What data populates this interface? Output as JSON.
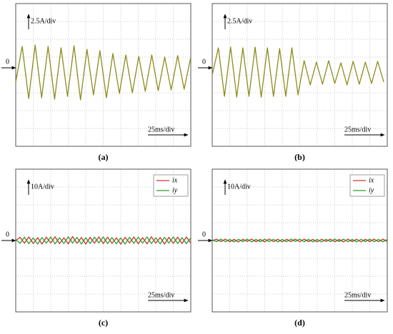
{
  "chart_data": [
    {
      "type": "line",
      "caption": "(a)",
      "y_scale_label": "2.5A/div",
      "x_scale_label": "25ms/div",
      "zero_marker": 0,
      "xlim": [
        0,
        250
      ],
      "ylim": [
        -11,
        9
      ],
      "xticks": [
        0,
        25,
        50,
        75,
        100,
        125,
        150,
        175,
        200,
        225,
        250
      ],
      "yticks": [
        -11,
        -8.5,
        -6,
        -3.5,
        -1,
        1.5,
        4,
        6.5,
        9
      ],
      "grid": true,
      "x": [
        0,
        9.25,
        18.5,
        27.75,
        37,
        46.25,
        55.5,
        64.75,
        74,
        83.25,
        92.5,
        101.75,
        111,
        120.25,
        129.5,
        138.75,
        148,
        157.25,
        166.5,
        175.75,
        185,
        194.25,
        203.5,
        212.75,
        222,
        231.25,
        240.5,
        249.75
      ],
      "series": [
        {
          "color": "#8c8c1c",
          "values": [
            -2,
            3,
            -4.3,
            3.2,
            -4.2,
            3,
            -4.4,
            2.8,
            -4,
            3.1,
            -4.5,
            2.6,
            -3.8,
            2.4,
            -4.2,
            2,
            -3.6,
            1.8,
            -3.5,
            1.6,
            -3.3,
            1.8,
            -3.2,
            1.5,
            -3.1,
            1.7,
            -3,
            1.4
          ]
        }
      ]
    },
    {
      "type": "line",
      "caption": "(b)",
      "y_scale_label": "2.5A/div",
      "x_scale_label": "25ms/div",
      "zero_marker": 0,
      "xlim": [
        0,
        250
      ],
      "ylim": [
        -11,
        9
      ],
      "xticks": [
        0,
        25,
        50,
        75,
        100,
        125,
        150,
        175,
        200,
        225,
        250
      ],
      "yticks": [
        -11,
        -8.5,
        -6,
        -3.5,
        -1,
        1.5,
        4,
        6.5,
        9
      ],
      "grid": true,
      "x": [
        0,
        8.75,
        17.5,
        26.25,
        35,
        43.75,
        52.5,
        61.25,
        70,
        78.75,
        87.5,
        96.25,
        105,
        113.75,
        122.5,
        131.25,
        140,
        148.75,
        157.5,
        166.25,
        175,
        183.75,
        192.5,
        201.25,
        210,
        218.75,
        227.5,
        236.25,
        245
      ],
      "series": [
        {
          "color": "#8c8c1c",
          "values": [
            -1,
            2.8,
            -4,
            2.9,
            -4.1,
            2.8,
            -4,
            2.9,
            -4.1,
            2.8,
            -4,
            2.7,
            -4,
            2.8,
            -3.8,
            1,
            -2.4,
            0.8,
            -2.3,
            1,
            -2.2,
            0.7,
            -2.4,
            0.9,
            -2.3,
            0.8,
            -2.2,
            0.9,
            -2
          ]
        }
      ]
    },
    {
      "type": "line",
      "caption": "(c)",
      "y_scale_label": "10A/div",
      "x_scale_label": "25ms/div",
      "zero_marker": 0,
      "legend": "top right",
      "xlim": [
        0,
        250
      ],
      "ylim": [
        -40,
        40
      ],
      "xticks": [
        0,
        25,
        50,
        75,
        100,
        125,
        150,
        175,
        200,
        225,
        250
      ],
      "yticks": [
        -40,
        -30,
        -20,
        -10,
        0,
        10,
        20,
        30,
        40
      ],
      "grid": true,
      "x": [
        0,
        6.25,
        12.5,
        18.75,
        25,
        31.25,
        37.5,
        43.75,
        50,
        56.25,
        62.5,
        68.75,
        75,
        81.25,
        87.5,
        93.75,
        100,
        106.25,
        112.5,
        118.75,
        125,
        131.25,
        137.5,
        143.75,
        150,
        156.25,
        162.5,
        168.75,
        175,
        181.25,
        187.5,
        193.75,
        200,
        206.25,
        212.5,
        218.75,
        225,
        231.25,
        237.5,
        243.75,
        250
      ],
      "series": [
        {
          "name": "ix",
          "color": "#d03030",
          "values": [
            0,
            1.8,
            -1.5,
            2,
            -1.7,
            1.6,
            -2,
            1.9,
            -1.4,
            2.1,
            -1.8,
            1.5,
            -1.9,
            2.2,
            -1.6,
            1.7,
            -2,
            1.8,
            -1.5,
            2,
            -1.7,
            1.9,
            -1.6,
            1.5,
            -2.1,
            1.8,
            -1.4,
            2,
            -1.8,
            1.6,
            -1.9,
            2.1,
            -1.5,
            1.7,
            -2,
            1.8,
            -1.6,
            1.9,
            -1.7,
            2,
            -1.5
          ]
        },
        {
          "name": "iy",
          "color": "#2e9e2e",
          "values": [
            0.5,
            -1.6,
            1.9,
            -1.8,
            1.5,
            -2,
            1.7,
            -1.5,
            2,
            -1.9,
            1.6,
            -1.7,
            2.1,
            -1.5,
            1.8,
            -2,
            1.6,
            -1.7,
            1.9,
            -1.4,
            2,
            -1.8,
            1.7,
            -1.9,
            1.5,
            -2,
            1.8,
            -1.6,
            1.9,
            -1.5,
            2,
            -1.7,
            1.6,
            -1.9,
            1.8,
            -1.5,
            2,
            -1.7,
            1.6,
            -1.8,
            1.5
          ]
        }
      ]
    },
    {
      "type": "line",
      "caption": "(d)",
      "y_scale_label": "10A/div",
      "x_scale_label": "25ms/div",
      "zero_marker": 0,
      "legend": "top right",
      "xlim": [
        0,
        250
      ],
      "ylim": [
        -40,
        40
      ],
      "xticks": [
        0,
        25,
        50,
        75,
        100,
        125,
        150,
        175,
        200,
        225,
        250
      ],
      "yticks": [
        -40,
        -30,
        -20,
        -10,
        0,
        10,
        20,
        30,
        40
      ],
      "grid": true,
      "x": [
        0,
        6.25,
        12.5,
        18.75,
        25,
        31.25,
        37.5,
        43.75,
        50,
        56.25,
        62.5,
        68.75,
        75,
        81.25,
        87.5,
        93.75,
        100,
        106.25,
        112.5,
        118.75,
        125,
        131.25,
        137.5,
        143.75,
        150,
        156.25,
        162.5,
        168.75,
        175,
        181.25,
        187.5,
        193.75,
        200,
        206.25,
        212.5,
        218.75,
        225,
        231.25,
        237.5,
        243.75,
        250
      ],
      "series": [
        {
          "name": "ix",
          "color": "#d03030",
          "values": [
            0,
            0.7,
            -0.6,
            0.8,
            -0.7,
            0.6,
            -0.8,
            0.7,
            -0.5,
            0.8,
            -0.7,
            0.6,
            -0.8,
            0.9,
            -0.6,
            0.7,
            -0.8,
            0.7,
            -0.6,
            0.8,
            -0.7,
            0.8,
            -0.6,
            0.6,
            -0.8,
            0.7,
            -0.5,
            0.8,
            -0.7,
            0.6,
            -0.8,
            0.8,
            -0.6,
            0.7,
            -0.8,
            0.7,
            -0.6,
            0.8,
            -0.7,
            0.8,
            -0.6
          ]
        },
        {
          "name": "iy",
          "color": "#2e9e2e",
          "values": [
            0.2,
            -0.6,
            0.8,
            -0.7,
            0.6,
            -0.8,
            0.7,
            -0.6,
            0.8,
            -0.8,
            0.6,
            -0.7,
            0.8,
            -0.6,
            0.7,
            -0.8,
            0.6,
            -0.7,
            0.8,
            -0.5,
            0.8,
            -0.7,
            0.7,
            -0.8,
            0.6,
            -0.8,
            0.7,
            -0.6,
            0.8,
            -0.6,
            0.8,
            -0.7,
            0.6,
            -0.8,
            0.7,
            -0.6,
            0.8,
            -0.7,
            0.6,
            -0.7,
            0.6
          ]
        }
      ]
    }
  ]
}
